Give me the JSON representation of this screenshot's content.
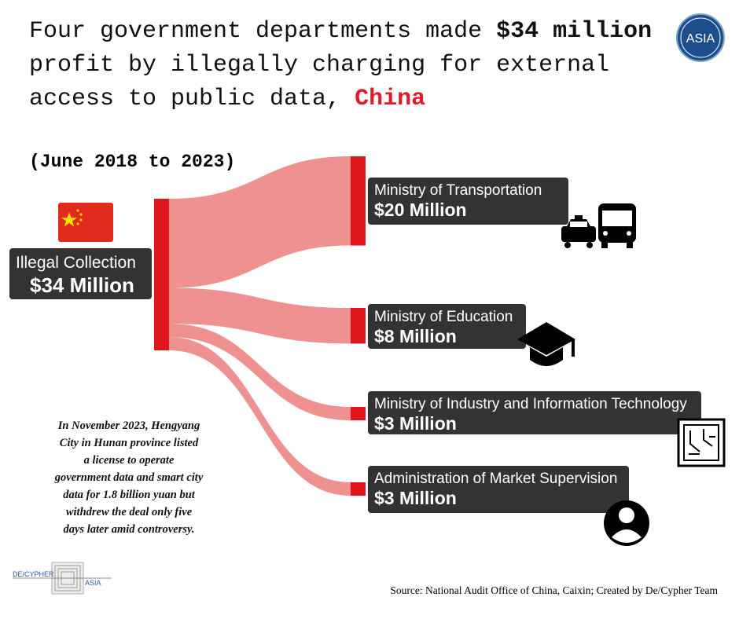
{
  "chart_data": {
    "type": "sankey",
    "title": [
      [
        "Four government departments made ",
        "$34 million"
      ],
      [
        "profit by illegally charging for external"
      ],
      [
        "access to public data, ",
        "China"
      ]
    ],
    "subtitle": "(June 2018 to 2023)",
    "source": {
      "name": "Illegal Collection",
      "value": 34,
      "value_label": "$34 Million"
    },
    "categories": [
      "Ministry of Transportation",
      "Ministry of Education",
      "Ministry of Industry and Information Technology",
      "Administration of Market Supervision"
    ],
    "values": [
      20,
      8,
      3,
      3
    ],
    "value_labels": [
      "$20 Million",
      "$8 Million",
      "$3 Million",
      "$3 Million"
    ],
    "node_color": "#e0161d",
    "link_color": "#f09191",
    "annotation": [
      "In November 2023, Hengyang",
      "City in Hunan province listed",
      "a license to operate",
      "government data and smart city",
      "data for 1.8 billion yuan but",
      "withdrew the deal only five",
      "days later amid controversy."
    ],
    "credit": "Source: National Audit Office of China, Caixin; Created by De/Cypher Team",
    "logos": {
      "badge": "ASIA",
      "footer": [
        "DE/CYPHER",
        "ASIA"
      ]
    }
  }
}
